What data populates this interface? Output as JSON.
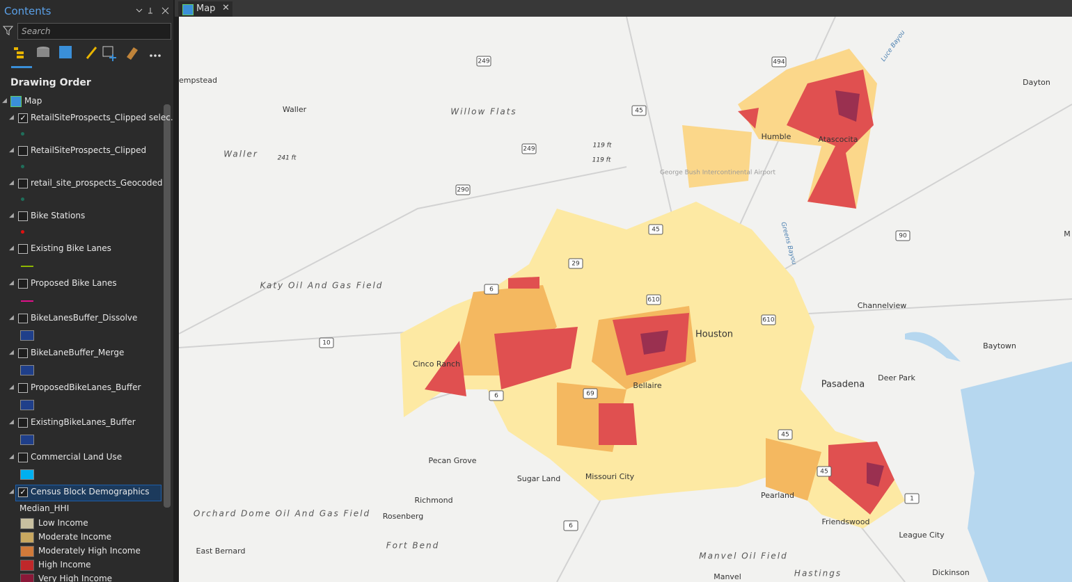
{
  "panel": {
    "title": "Contents",
    "search_placeholder": "Search",
    "section": "Drawing Order",
    "map_name": "Map",
    "layers": [
      {
        "name": "RetailSiteProspects_Clipped selec...",
        "checked": true,
        "symbol": "point",
        "color": "#1f6e5a"
      },
      {
        "name": "RetailSiteProspects_Clipped",
        "checked": false,
        "symbol": "point",
        "color": "#1f6e5a"
      },
      {
        "name": "retail_site_prospects_Geocoded",
        "checked": false,
        "symbol": "point",
        "color": "#1f6e5a"
      },
      {
        "name": "Bike Stations",
        "checked": false,
        "symbol": "point",
        "color": "#e01010"
      },
      {
        "name": "Existing Bike Lanes",
        "checked": false,
        "symbol": "line",
        "color": "#8fb800"
      },
      {
        "name": "Proposed Bike Lanes",
        "checked": false,
        "symbol": "line",
        "color": "#e0108a"
      },
      {
        "name": "BikeLanesBuffer_Dissolve",
        "checked": false,
        "symbol": "fill",
        "color": "#1f3f8a"
      },
      {
        "name": "BikeLaneBuffer_Merge",
        "checked": false,
        "symbol": "fill",
        "color": "#1f3f8a"
      },
      {
        "name": "ProposedBikeLanes_Buffer",
        "checked": false,
        "symbol": "fill",
        "color": "#1f3f8a"
      },
      {
        "name": "ExistingBikeLanes_Buffer",
        "checked": false,
        "symbol": "fill",
        "color": "#1f3f8a"
      },
      {
        "name": "Commercial Land Use",
        "checked": false,
        "symbol": "fill",
        "color": "#00b0f0"
      },
      {
        "name": "Census Block Demographics",
        "checked": true,
        "symbol": "legend",
        "color": "#1f5fa8"
      }
    ],
    "legend": {
      "field": "Median_HHI",
      "classes": [
        {
          "label": "Low Income",
          "color": "#c8c0a0"
        },
        {
          "label": "Moderate Income",
          "color": "#c8a860"
        },
        {
          "label": "Moderately High Income",
          "color": "#d07a3a"
        },
        {
          "label": "High Income",
          "color": "#c0282a"
        },
        {
          "label": "Very High Income",
          "color": "#8a1838"
        }
      ]
    }
  },
  "map_tab": {
    "title": "Map"
  },
  "map": {
    "labels": [
      "empstead",
      "Waller",
      "Waller",
      "Willow Flats",
      "241 ft",
      "119 ft",
      "119 ft",
      "249",
      "249",
      "494",
      "45",
      "290",
      "29",
      "45",
      "6",
      "10",
      "610",
      "610",
      "6",
      "69",
      "45",
      "45",
      "1",
      "6",
      "90",
      "Humble",
      "Atascocita",
      "George Bush Intercontinental Airport",
      "Dayton",
      "Luce Bayou",
      "Greens Bayou",
      "Katy Oil And Gas Field",
      "Houston",
      "Channelview",
      "Baytown",
      "Cinco Ranch",
      "Bellaire",
      "Pasadena",
      "Deer Park",
      "Pecan Grove",
      "Sugar Land",
      "Missouri City",
      "Richmond",
      "Rosenberg",
      "Orchard Dome Oil And Gas Field",
      "Pearland",
      "Friendswood",
      "League City",
      "Fort Bend",
      "East Bernard",
      "Manvel Oil Field",
      "Manvel",
      "Hastings",
      "Dickinson",
      "M"
    ]
  }
}
